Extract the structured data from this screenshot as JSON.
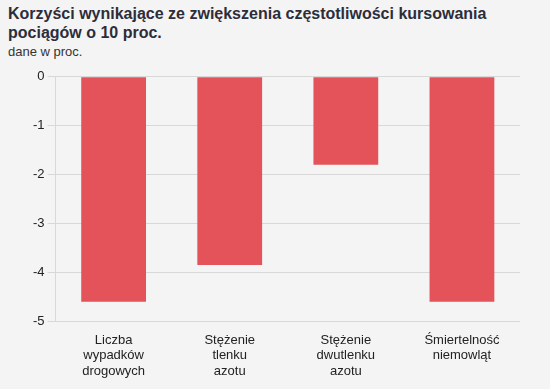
{
  "chart_data": {
    "type": "bar",
    "title": "Korzyści wynikające ze zwiększenia częstotliwości kursowania pociągów o 10 proc.",
    "subtitle": "dane w proc.",
    "categories": [
      "Liczba wypadków drogowych",
      "Stężenie tlenku azotu",
      "Stężenie dwutlenku azotu",
      "Śmiertelność niemowląt"
    ],
    "values": [
      -4.6,
      -3.85,
      -1.8,
      -4.6
    ],
    "color": "#e5535a",
    "ylim": [
      -5,
      0
    ],
    "yticks": [
      -5,
      -4,
      -3,
      -2,
      -1,
      0
    ],
    "grid": true
  }
}
